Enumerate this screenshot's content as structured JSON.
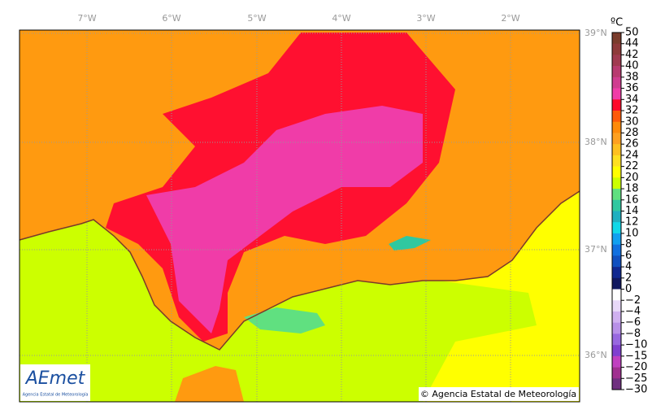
{
  "map": {
    "longitude_labels": [
      "7°W",
      "6°W",
      "5°W",
      "4°W",
      "3°W",
      "2°W"
    ],
    "latitude_labels": [
      "39°N",
      "38°N",
      "37°N",
      "36°N"
    ],
    "copyright": "© Agencia Estatal de Meteorología",
    "logo": {
      "name": "AEmet",
      "subtitle": "Agencia Estatal de Meteorología"
    }
  },
  "colorbar": {
    "unit": "ºC",
    "labels": [
      "50",
      "44",
      "42",
      "40",
      "38",
      "36",
      "34",
      "32",
      "30",
      "28",
      "26",
      "24",
      "22",
      "20",
      "18",
      "16",
      "14",
      "12",
      "10",
      "8",
      "6",
      "4",
      "2",
      "0",
      "−2",
      "−4",
      "−6",
      "−8",
      "−10",
      "−15",
      "−20",
      "−25",
      "−30"
    ],
    "colors": [
      "#7a3c2c",
      "#8e3a3a",
      "#a03a50",
      "#b83a70",
      "#d03c90",
      "#f03ca8",
      "#ff0a2a",
      "#ff5a0a",
      "#ff8a0a",
      "#ffa020",
      "#ffc020",
      "#ffe020",
      "#ffff00",
      "#ccff00",
      "#60e080",
      "#30c8a0",
      "#20b0c0",
      "#10d8e8",
      "#10a0f0",
      "#1070e0",
      "#1050c0",
      "#102890",
      "#101860",
      "#ffffff",
      "#e8d8f8",
      "#d0b0f0",
      "#b890e8",
      "#9868e0",
      "#8040d0",
      "#c040c0",
      "#a03090",
      "#703080"
    ]
  }
}
